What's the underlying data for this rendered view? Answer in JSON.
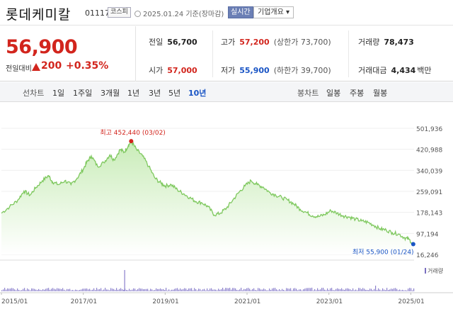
{
  "header": {
    "name": "롯데케미칼",
    "code": "011170",
    "market": "코스피",
    "date": "2025.01.24 기준(장마감)",
    "live": "실시간",
    "corp_info": "기업개요 ▾"
  },
  "quote": {
    "price": "56,900",
    "change_label": "전일대비",
    "change_value": "200",
    "change_pct": "+0.35%",
    "prev_close": {
      "label": "전일",
      "value": "56,700"
    },
    "open": {
      "label": "시가",
      "value": "57,000"
    },
    "high": {
      "label": "고가",
      "value": "57,200",
      "sub": "(상한가 73,700)"
    },
    "low": {
      "label": "저가",
      "value": "55,900",
      "sub": "(하한가 39,700)"
    },
    "volume": {
      "label": "거래량",
      "value": "78,473"
    },
    "amount": {
      "label": "거래대금",
      "value": "4,434",
      "unit": "백만"
    }
  },
  "toolbar": {
    "line_label": "선차트",
    "line_periods": [
      "1일",
      "1주일",
      "3개월",
      "1년",
      "3년",
      "5년",
      "10년"
    ],
    "active_period": "10년",
    "candle_label": "봉차트",
    "candle_periods": [
      "일봉",
      "주봉",
      "월봉"
    ]
  },
  "chart_data": {
    "type": "area",
    "x_ticks": [
      "2015/01",
      "2017/01",
      "2019/01",
      "2021/01",
      "2023/01",
      "2025/01"
    ],
    "y_ticks": [
      "501,936",
      "420,988",
      "340,039",
      "259,091",
      "178,143",
      "97,194",
      "16,246"
    ],
    "ylim": [
      16246,
      501936
    ],
    "max_label": "최고 452,440 (03/02)",
    "min_label": "최저 55,900 (01/24)",
    "volume_legend": "거래량",
    "series": [
      {
        "values": [
          [
            2015.0,
            175000
          ],
          [
            2015.2,
            200000
          ],
          [
            2015.4,
            225000
          ],
          [
            2015.55,
            260000
          ],
          [
            2015.7,
            245000
          ],
          [
            2015.85,
            275000
          ],
          [
            2016.0,
            300000
          ],
          [
            2016.15,
            320000
          ],
          [
            2016.25,
            295000
          ],
          [
            2016.4,
            285000
          ],
          [
            2016.55,
            300000
          ],
          [
            2016.7,
            285000
          ],
          [
            2016.85,
            310000
          ],
          [
            2017.0,
            345000
          ],
          [
            2017.1,
            375000
          ],
          [
            2017.2,
            395000
          ],
          [
            2017.35,
            355000
          ],
          [
            2017.5,
            370000
          ],
          [
            2017.65,
            400000
          ],
          [
            2017.75,
            380000
          ],
          [
            2017.9,
            420000
          ],
          [
            2018.0,
            410000
          ],
          [
            2018.1,
            435000
          ],
          [
            2018.17,
            452440
          ],
          [
            2018.3,
            420000
          ],
          [
            2018.45,
            395000
          ],
          [
            2018.6,
            355000
          ],
          [
            2018.75,
            310000
          ],
          [
            2018.9,
            290000
          ],
          [
            2019.0,
            280000
          ],
          [
            2019.15,
            285000
          ],
          [
            2019.3,
            265000
          ],
          [
            2019.45,
            250000
          ],
          [
            2019.6,
            235000
          ],
          [
            2019.75,
            220000
          ],
          [
            2019.9,
            215000
          ],
          [
            2020.05,
            200000
          ],
          [
            2020.2,
            168000
          ],
          [
            2020.35,
            175000
          ],
          [
            2020.5,
            195000
          ],
          [
            2020.65,
            225000
          ],
          [
            2020.8,
            255000
          ],
          [
            2020.95,
            280000
          ],
          [
            2021.1,
            300000
          ],
          [
            2021.25,
            285000
          ],
          [
            2021.4,
            275000
          ],
          [
            2021.55,
            255000
          ],
          [
            2021.7,
            245000
          ],
          [
            2021.85,
            235000
          ],
          [
            2022.0,
            225000
          ],
          [
            2022.15,
            210000
          ],
          [
            2022.3,
            190000
          ],
          [
            2022.45,
            178000
          ],
          [
            2022.6,
            165000
          ],
          [
            2022.75,
            162000
          ],
          [
            2022.9,
            170000
          ],
          [
            2023.05,
            185000
          ],
          [
            2023.2,
            175000
          ],
          [
            2023.35,
            165000
          ],
          [
            2023.5,
            160000
          ],
          [
            2023.65,
            152000
          ],
          [
            2023.8,
            145000
          ],
          [
            2023.95,
            140000
          ],
          [
            2024.1,
            128000
          ],
          [
            2024.25,
            115000
          ],
          [
            2024.4,
            110000
          ],
          [
            2024.55,
            100000
          ],
          [
            2024.7,
            95000
          ],
          [
            2024.85,
            80000
          ],
          [
            2024.95,
            75000
          ],
          [
            2025.06,
            55900
          ]
        ]
      }
    ],
    "colors": {
      "line": "#7ec85e",
      "fill_top": "#c9ecb8",
      "fill_bottom": "#ffffff",
      "max": "#d2251d",
      "min": "#1a55c5"
    }
  }
}
